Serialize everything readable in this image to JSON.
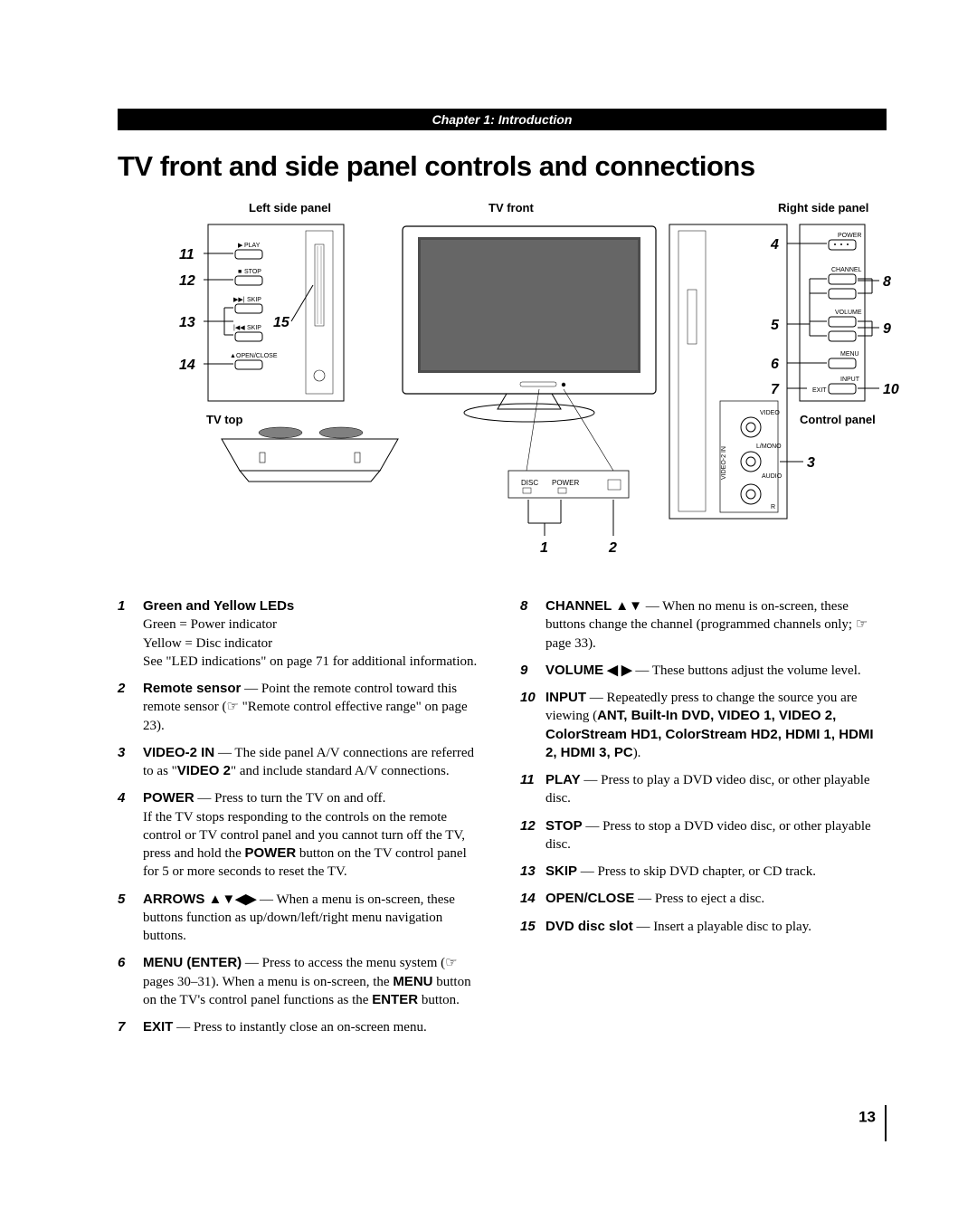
{
  "chapter": "Chapter 1: Introduction",
  "title": "TV front and side panel controls and connections",
  "diagram": {
    "left_label": "Left side panel",
    "front_label": "TV front",
    "right_label": "Right side panel",
    "top_label": "TV top",
    "control_label": "Control panel",
    "btn_play": "PLAY",
    "btn_stop": "STOP",
    "btn_skip": "SKIP",
    "btn_open": "OPEN/CLOSE",
    "btn_power": "POWER",
    "btn_channel": "CHANNEL",
    "btn_volume": "VOLUME",
    "btn_menu": "MENU",
    "btn_input": "INPUT",
    "btn_exit": "EXIT",
    "jack_video": "VIDEO",
    "jack_lmono": "L/MONO",
    "jack_audio": "AUDIO",
    "jack_r": "R",
    "jack_side": "VIDEO-2 IN",
    "led_disc": "DISC",
    "led_power": "POWER",
    "n1": "1",
    "n2": "2",
    "n3": "3",
    "n4": "4",
    "n5": "5",
    "n6": "6",
    "n7": "7",
    "n8": "8",
    "n9": "9",
    "n10": "10",
    "n11": "11",
    "n12": "12",
    "n13": "13",
    "n14": "14",
    "n15": "15"
  },
  "left": [
    {
      "n": "1",
      "label": "Green and Yellow LEDs",
      "text": "<br>Green = Power indicator<br>Yellow = Disc indicator<br>See \"LED indications\" on page 71 for additional information."
    },
    {
      "n": "2",
      "label": "Remote sensor",
      "text": " — Point the remote control toward this remote sensor (☞ \"Remote control effective range\" on page 23)."
    },
    {
      "n": "3",
      "label": "VIDEO-2 IN",
      "text": " — The side panel A/V connections are referred to as \"<span class='label'>VIDEO 2</span>\" and include standard A/V connections."
    },
    {
      "n": "4",
      "label": "POWER",
      "text": " — Press to turn the TV on and off.<br>If the TV stops responding to the controls on the remote control or TV control panel and you cannot turn off the TV, press and hold the <span class='label'>POWER</span> button on the TV control panel for 5 or more seconds to reset the TV."
    },
    {
      "n": "5",
      "label": "ARROWS <span class='arrows'>▲▼◀▶</span>",
      "text": " — When a menu is on-screen, these buttons function as up/down/left/right menu navigation buttons."
    },
    {
      "n": "6",
      "label": "MENU (ENTER)",
      "text": " — Press to access the menu system (☞ pages 30–31). When a menu is on-screen, the <span class='label'>MENU</span> button on the TV's control panel functions as the <span class='label'>ENTER</span> button."
    },
    {
      "n": "7",
      "label": "EXIT",
      "text": " — Press to instantly close an on-screen menu."
    }
  ],
  "right": [
    {
      "n": "8",
      "label": "CHANNEL <span class='arrows'>▲▼</span>",
      "text": " — When no menu is on-screen, these buttons change the channel (programmed channels only; ☞ page 33)."
    },
    {
      "n": "9",
      "label": "VOLUME <span class='arrows'>◀ ▶</span>",
      "text": " — These buttons adjust the volume level."
    },
    {
      "n": "10",
      "label": "INPUT",
      "text": " — Repeatedly press to change the source you are viewing (<span class='label'>ANT, Built-In DVD, VIDEO 1, VIDEO 2, ColorStream HD1, ColorStream HD2, HDMI 1, HDMI 2, HDMI 3, PC</span>)."
    },
    {
      "n": "11",
      "label": "PLAY",
      "text": " — Press to play a DVD video disc, or other playable disc."
    },
    {
      "n": "12",
      "label": "STOP",
      "text": " — Press to stop a DVD video disc, or other playable disc."
    },
    {
      "n": "13",
      "label": "SKIP",
      "text": " — Press to skip DVD chapter, or CD track."
    },
    {
      "n": "14",
      "label": "OPEN/CLOSE",
      "text": " — Press to eject a disc."
    },
    {
      "n": "15",
      "label": "DVD disc slot",
      "text": " — Insert a playable disc to play."
    }
  ],
  "page": "13"
}
